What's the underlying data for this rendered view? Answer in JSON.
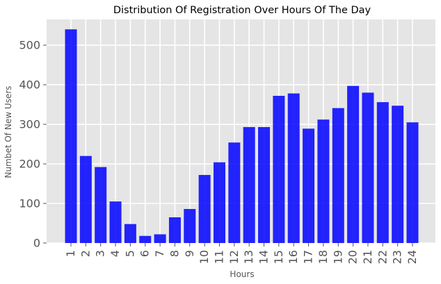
{
  "chart_data": {
    "type": "bar",
    "title": "Distribution Of Registration Over Hours Of The Day",
    "xlabel": "Hours",
    "ylabel": "Numbet Of New Users",
    "categories": [
      "1",
      "2",
      "3",
      "4",
      "5",
      "6",
      "7",
      "8",
      "9",
      "10",
      "11",
      "12",
      "13",
      "14",
      "15",
      "16",
      "17",
      "18",
      "19",
      "20",
      "21",
      "22",
      "23",
      "24"
    ],
    "values": [
      540,
      220,
      192,
      105,
      48,
      18,
      22,
      65,
      86,
      172,
      204,
      254,
      293,
      293,
      372,
      378,
      289,
      312,
      341,
      397,
      380,
      356,
      347,
      305
    ],
    "ylim": [
      0,
      565
    ],
    "yticks": [
      0,
      100,
      200,
      300,
      400,
      500
    ],
    "grid": true,
    "colors": {
      "bar": "#0000ff",
      "plot_background": "#e5e5e5",
      "grid": "#ffffff",
      "tick_text": "#555555"
    }
  }
}
